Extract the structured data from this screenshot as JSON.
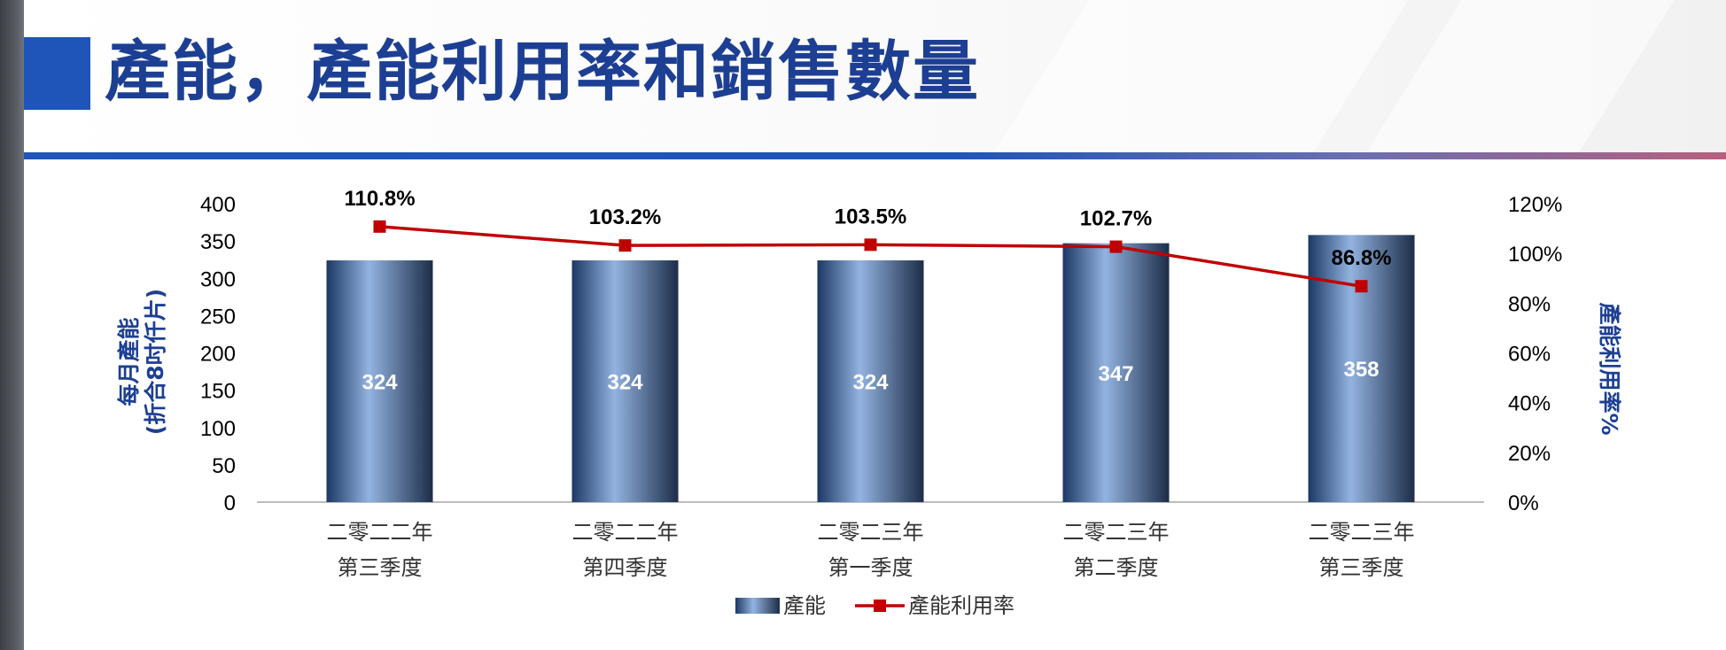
{
  "page": {
    "title": "產能，產能利用率和銷售數量"
  },
  "chart_data": {
    "type": "bar",
    "categories": [
      [
        "二零二二年",
        "第三季度"
      ],
      [
        "二零二二年",
        "第四季度"
      ],
      [
        "二零二三年",
        "第一季度"
      ],
      [
        "二零二三年",
        "第二季度"
      ],
      [
        "二零二三年",
        "第三季度"
      ]
    ],
    "series": [
      {
        "name": "產能",
        "type": "bar",
        "axis": "left",
        "values": [
          324,
          324,
          324,
          347,
          358
        ],
        "labels": [
          "324",
          "324",
          "324",
          "347",
          "358"
        ]
      },
      {
        "name": "產能利用率",
        "type": "line",
        "axis": "right",
        "values": [
          110.8,
          103.2,
          103.5,
          102.7,
          86.8
        ],
        "labels": [
          "110.8%",
          "103.2%",
          "103.5%",
          "102.7%",
          "86.8%"
        ]
      }
    ],
    "ylabel_lines": [
      "每月產能",
      "(折合8吋仟片)"
    ],
    "y2label": "產能利用率%",
    "ylim": [
      0,
      400
    ],
    "y2lim": [
      0,
      120
    ],
    "yticks": [
      "0",
      "50",
      "100",
      "150",
      "200",
      "250",
      "300",
      "350",
      "400"
    ],
    "y2ticks": [
      "0%",
      "20%",
      "40%",
      "60%",
      "80%",
      "100%",
      "120%"
    ],
    "legend_position": "bottom",
    "grid": false,
    "colors": {
      "bar_dark": "#1c3864",
      "bar_light": "#93b3e0",
      "line": "#c00000"
    }
  }
}
